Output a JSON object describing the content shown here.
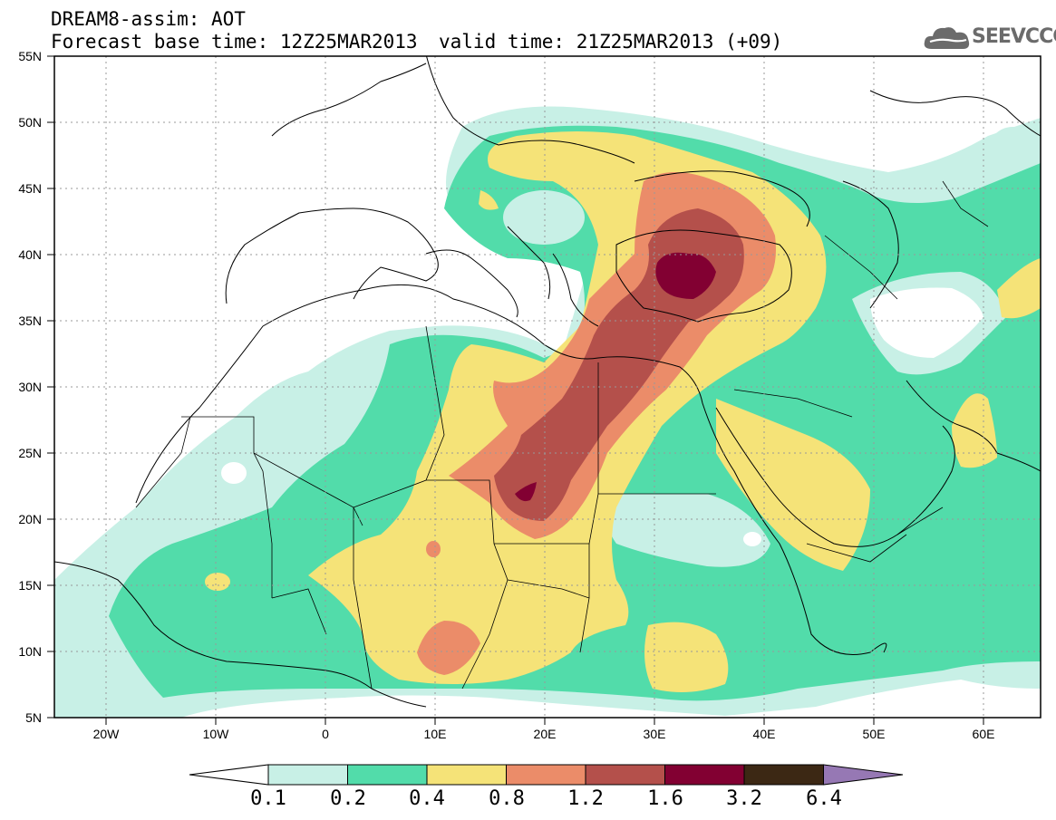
{
  "title": {
    "line1": "DREAM8-assim: AOT",
    "base_time": "Forecast base time: 12Z25MAR2013",
    "valid_time": "valid time: 21Z25MAR2013 (+09)"
  },
  "logo": {
    "text": "SEEVCCC",
    "icon": "cloud-icon"
  },
  "map": {
    "projection": "lat-lon",
    "lon_range": [
      -25,
      65
    ],
    "lat_range": [
      5,
      55
    ],
    "lat_labels": [
      "55N",
      "50N",
      "45N",
      "40N",
      "35N",
      "30N",
      "25N",
      "20N",
      "15N",
      "10N",
      "5N"
    ],
    "lon_labels": [
      "20W",
      "10W",
      "0",
      "10E",
      "20E",
      "30E",
      "40E",
      "50E",
      "60E"
    ],
    "grid": "dotted"
  },
  "colorbar": {
    "labels": [
      "0.1",
      "0.2",
      "0.4",
      "0.8",
      "1.2",
      "1.6",
      "3.2",
      "6.4"
    ],
    "colors": [
      "#ffffff",
      "#c8f0e6",
      "#52dcaa",
      "#f5e378",
      "#eb8c69",
      "#b4504b",
      "#820032",
      "#3c2814",
      "#9678b4"
    ]
  }
}
